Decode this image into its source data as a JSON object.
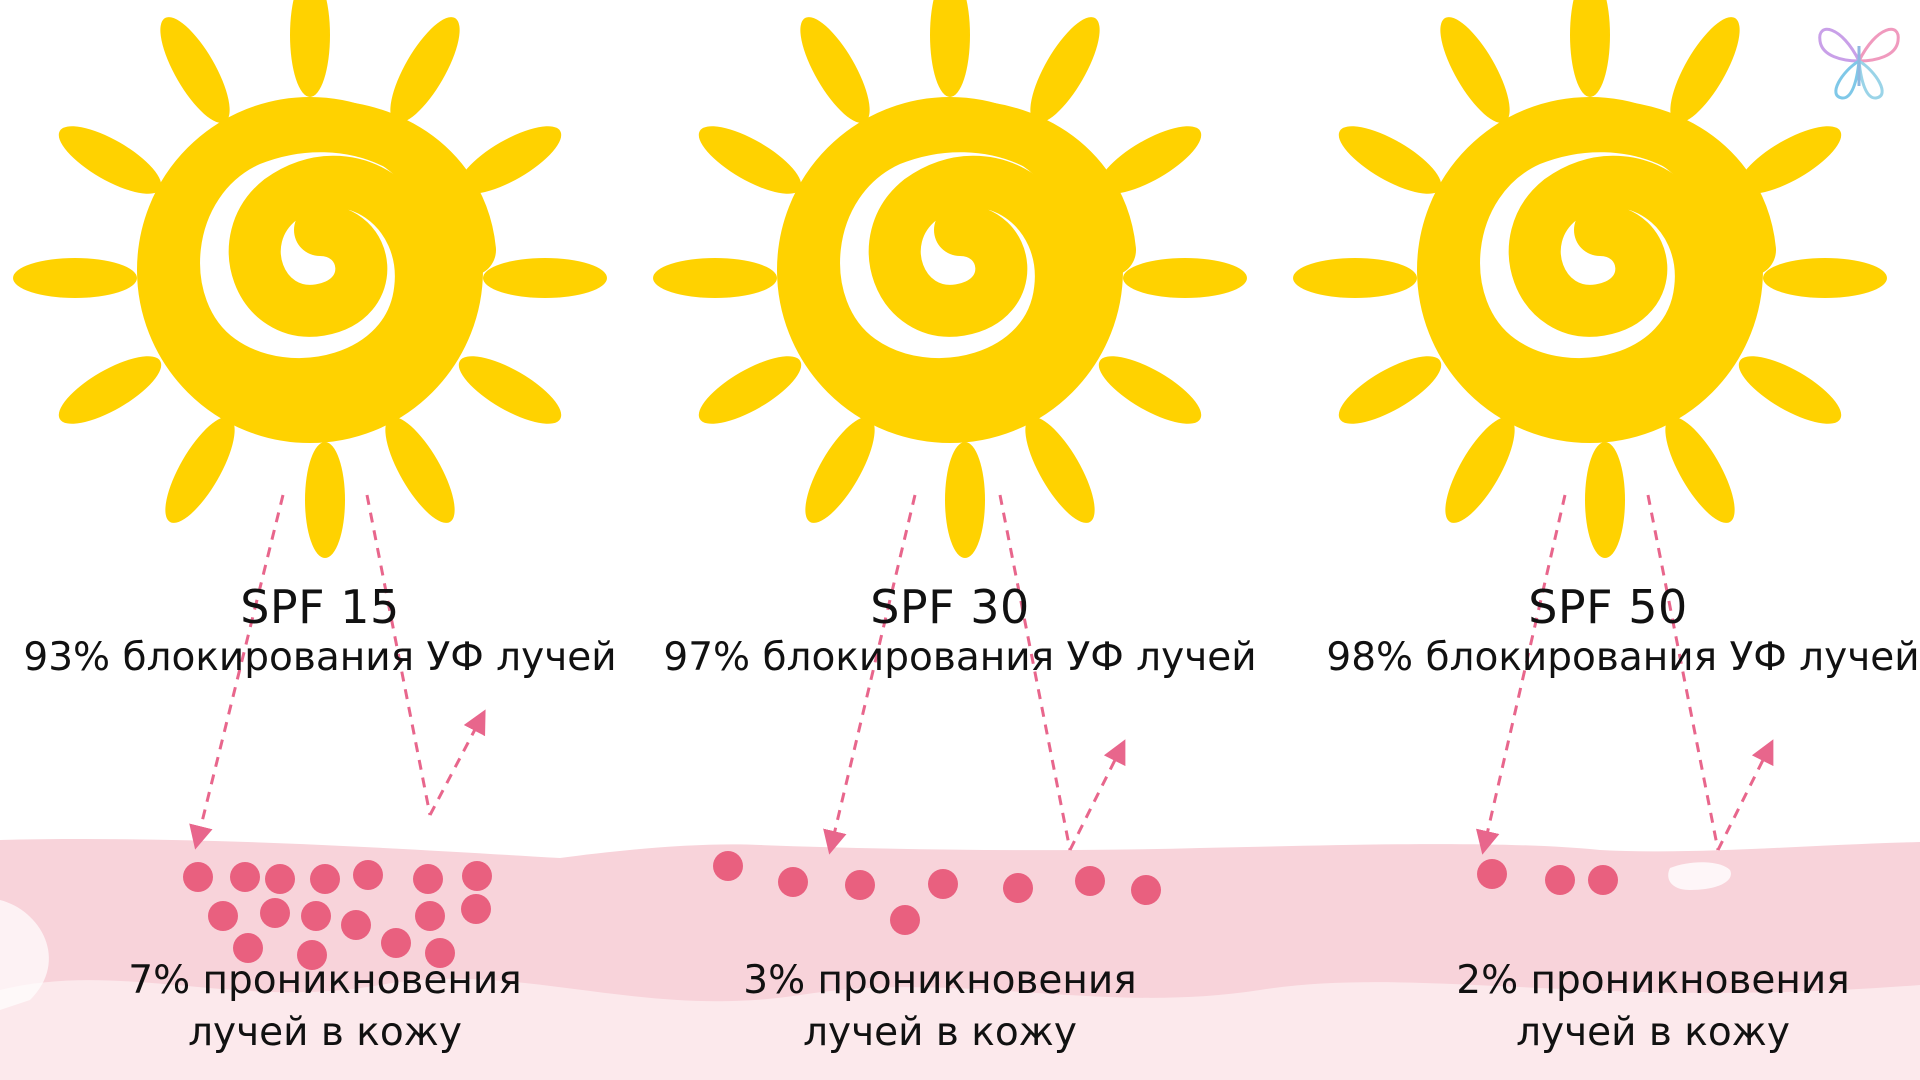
{
  "panels": [
    {
      "spf_label": "SPF 15",
      "block_text": "93% блокирования УФ лучей",
      "penetration_line1": "7% проникновения",
      "penetration_line2": "лучей в кожу",
      "blocked_percent": 93,
      "penetration_percent": 7
    },
    {
      "spf_label": "SPF 30",
      "block_text": "97% блокирования УФ лучей",
      "penetration_line1": "3% проникновения",
      "penetration_line2": "лучей в кожу",
      "blocked_percent": 97,
      "penetration_percent": 3
    },
    {
      "spf_label": "SPF 50",
      "block_text": "98% блокирования УФ лучей",
      "penetration_line1": "2% проникновения",
      "penetration_line2": "лучей в кожу",
      "blocked_percent": 98,
      "penetration_percent": 2
    }
  ],
  "colors": {
    "sun": "#FFD200",
    "arrow": "#E8668C",
    "particle": "#E9607F",
    "skin": "#F8D3DA",
    "skin_light": "#FCE9EC"
  },
  "icons": {
    "sun": "sun-icon",
    "logo": "butterfly-logo-icon"
  }
}
